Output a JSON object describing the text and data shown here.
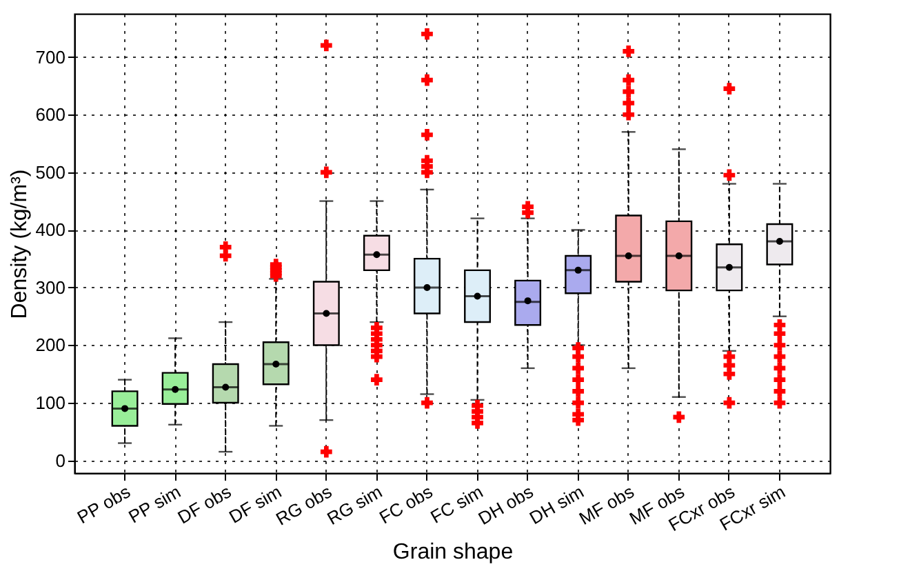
{
  "chart_data": {
    "type": "box",
    "xlabel": "Grain shape",
    "ylabel": "Density (kg/m³)",
    "categories": [
      "PP obs",
      "PP sim",
      "DF obs",
      "DF sim",
      "RG obs",
      "RG sim",
      "FC obs",
      "FC sim",
      "DH obs",
      "DH sim",
      "MF obs",
      "MF obs",
      "FCxr obs",
      "FCxr sim"
    ],
    "colors": [
      "#99ee99",
      "#99ee99",
      "#b5d9ae",
      "#b5d9ae",
      "#f6dde4",
      "#f6dde4",
      "#ddeef8",
      "#ddeef8",
      "#aaaaee",
      "#aaaaee",
      "#f3a9aa",
      "#f3a9aa",
      "#eeeaee",
      "#eeeaee"
    ],
    "boxes": [
      {
        "low": 30,
        "q1": 60,
        "median": 90,
        "q3": 120,
        "high": 140,
        "mean": 90
      },
      {
        "low": 62,
        "q1": 98,
        "median": 123,
        "q3": 152,
        "high": 212,
        "mean": 123
      },
      {
        "low": 15,
        "q1": 100,
        "median": 127,
        "q3": 167,
        "high": 240,
        "mean": 127,
        "outliers": [
          355,
          370
        ]
      },
      {
        "low": 60,
        "q1": 132,
        "median": 167,
        "q3": 205,
        "high": 315,
        "mean": 167,
        "outliers": [
          320,
          325,
          330,
          335,
          340
        ]
      },
      {
        "low": 70,
        "q1": 200,
        "median": 255,
        "q3": 310,
        "high": 450,
        "mean": 255,
        "outliers": [
          15,
          500,
          720
        ]
      },
      {
        "low": 240,
        "q1": 330,
        "median": 357,
        "q3": 390,
        "high": 450,
        "mean": 357,
        "outliers": [
          140,
          180,
          190,
          200,
          210,
          220,
          230
        ]
      },
      {
        "low": 115,
        "q1": 255,
        "median": 300,
        "q3": 350,
        "high": 470,
        "mean": 300,
        "outliers": [
          100,
          500,
          510,
          520,
          565,
          660,
          740
        ]
      },
      {
        "low": 105,
        "q1": 240,
        "median": 285,
        "q3": 330,
        "high": 420,
        "mean": 285,
        "outliers": [
          65,
          75,
          85,
          95
        ]
      },
      {
        "low": 160,
        "q1": 235,
        "median": 275,
        "q3": 312,
        "high": 420,
        "mean": 277,
        "outliers": [
          430,
          440
        ]
      },
      {
        "low": 200,
        "q1": 290,
        "median": 330,
        "q3": 355,
        "high": 400,
        "mean": 330,
        "outliers": [
          70,
          80,
          100,
          120,
          140,
          160,
          180,
          195
        ]
      },
      {
        "low": 160,
        "q1": 310,
        "median": 355,
        "q3": 425,
        "high": 570,
        "mean": 355,
        "outliers": [
          600,
          620,
          640,
          660,
          710
        ]
      },
      {
        "low": 110,
        "q1": 295,
        "median": 355,
        "q3": 415,
        "high": 540,
        "mean": 355,
        "outliers": [
          75
        ]
      },
      {
        "low": 190,
        "q1": 295,
        "median": 335,
        "q3": 375,
        "high": 480,
        "mean": 335,
        "outliers": [
          100,
          150,
          165,
          180,
          495,
          645
        ]
      },
      {
        "low": 250,
        "q1": 340,
        "median": 380,
        "q3": 410,
        "high": 480,
        "mean": 380,
        "outliers": [
          100,
          120,
          140,
          160,
          180,
          200,
          220,
          235
        ]
      }
    ],
    "ylim": [
      -22,
      775
    ],
    "yticks": [
      0,
      100,
      200,
      300,
      400,
      500,
      600,
      700
    ],
    "grid": true
  }
}
